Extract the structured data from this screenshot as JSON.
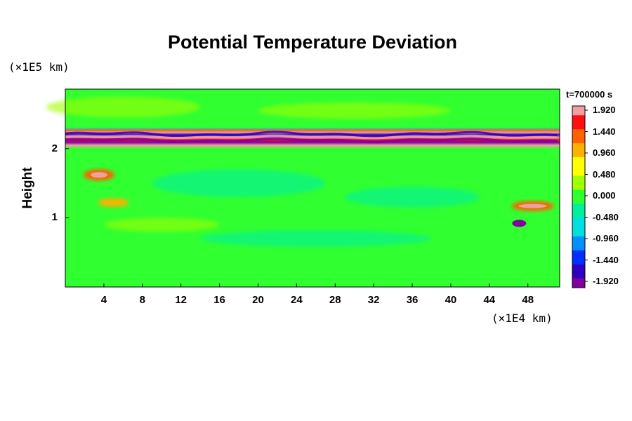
{
  "chart_data": {
    "type": "heatmap",
    "title": "Potential Temperature Deviation",
    "xlabel": "",
    "ylabel": "Height",
    "x_scale_unit": "(×1E4 km)",
    "y_scale_unit": "(×1E5 km)",
    "x_ticks": [
      4,
      8,
      12,
      16,
      20,
      24,
      28,
      32,
      36,
      40,
      44,
      48
    ],
    "y_ticks": [
      1,
      2
    ],
    "xlim": [
      0,
      51.3
    ],
    "ylim": [
      0,
      2.86
    ],
    "time_label": "t=700000 s",
    "colorbar": {
      "min": -1.92,
      "max": 1.92,
      "tick_labels": [
        "1.920",
        "1.440",
        "0.960",
        "0.480",
        "0.000",
        "-0.480",
        "-0.960",
        "-1.440",
        "-1.920"
      ],
      "colors": [
        "#8000a0",
        "#3000c0",
        "#0030ff",
        "#0090ff",
        "#00e0e0",
        "#00f0a0",
        "#30ff30",
        "#a0ff00",
        "#ffff00",
        "#ffb000",
        "#ff6000",
        "#ff1010",
        "#f0a0a0"
      ]
    },
    "features": [
      {
        "region": "background",
        "value": 0.0
      },
      {
        "region": "upper band x 0–51.3, height 2.0–2.3",
        "value_range": [
          -1.92,
          1.92
        ]
      },
      {
        "region": "patch near x 2–5, height 1.2–1.7",
        "value": 1.4
      },
      {
        "region": "patch near x 46–50, height 1.1–1.3",
        "value": 1.2
      },
      {
        "region": "blob near x 47, height 0.92",
        "value": -1.8
      }
    ]
  }
}
